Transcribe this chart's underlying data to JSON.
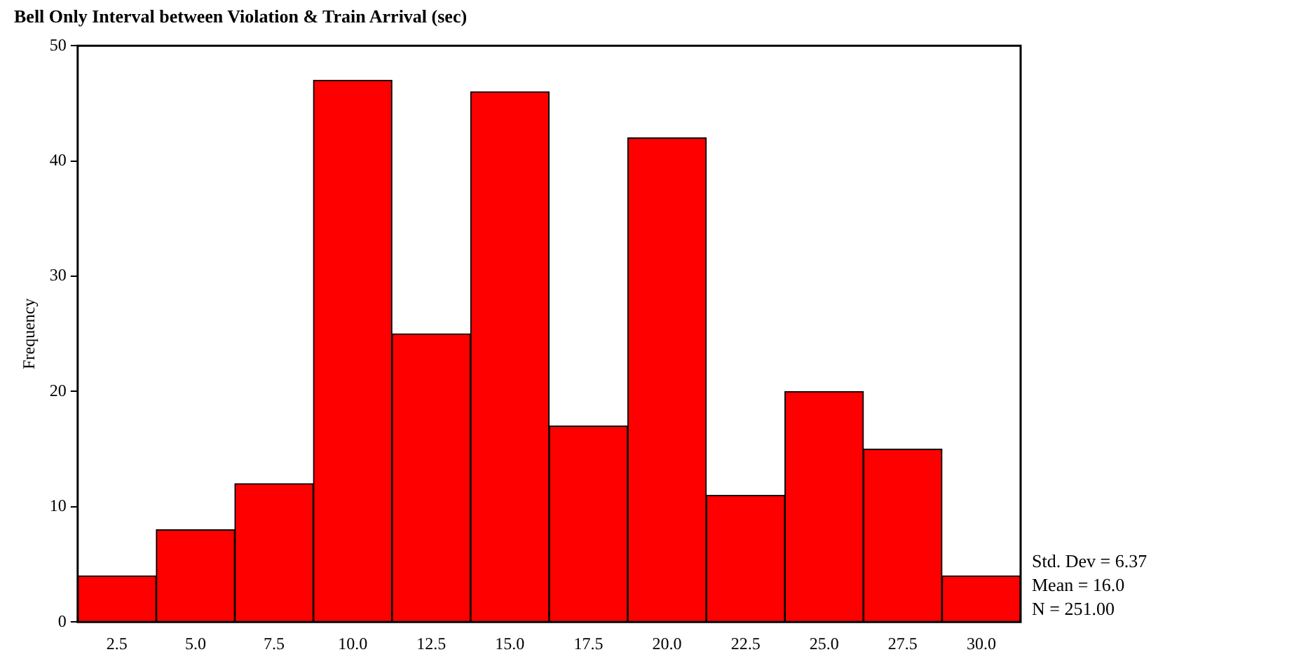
{
  "chart_data": {
    "type": "histogram",
    "title": "Bell Only Interval between Violation & Train Arrival (sec)",
    "ylabel": "Frequency",
    "bins": [
      1.25,
      3.75,
      6.25,
      8.75,
      11.25,
      13.75,
      16.25,
      18.75,
      21.25,
      23.75,
      26.25,
      28.75,
      31.25
    ],
    "values": [
      4,
      8,
      12,
      47,
      25,
      46,
      17,
      42,
      11,
      20,
      15,
      4
    ],
    "color": "#ff0000",
    "xlim": [
      1.25,
      31.25
    ],
    "xticks": [
      {
        "value": 2.5,
        "label": "2.5"
      },
      {
        "value": 5,
        "label": "5.0"
      },
      {
        "value": 7.5,
        "label": "7.5"
      },
      {
        "value": 10,
        "label": "10.0"
      },
      {
        "value": 12.5,
        "label": "12.5"
      },
      {
        "value": 15,
        "label": "15.0"
      },
      {
        "value": 17.5,
        "label": "17.5"
      },
      {
        "value": 20,
        "label": "20.0"
      },
      {
        "value": 22.5,
        "label": "22.5"
      },
      {
        "value": 25,
        "label": "25.0"
      },
      {
        "value": 27.5,
        "label": "27.5"
      },
      {
        "value": 30,
        "label": "30.0"
      }
    ],
    "ylim": [
      0,
      50
    ],
    "yticks": [
      0,
      10,
      20,
      30,
      40,
      50
    ],
    "grid": false,
    "legend": false,
    "annotations": [
      "Std. Dev = 6.37",
      "Mean = 16.0",
      "N = 251.00"
    ]
  }
}
